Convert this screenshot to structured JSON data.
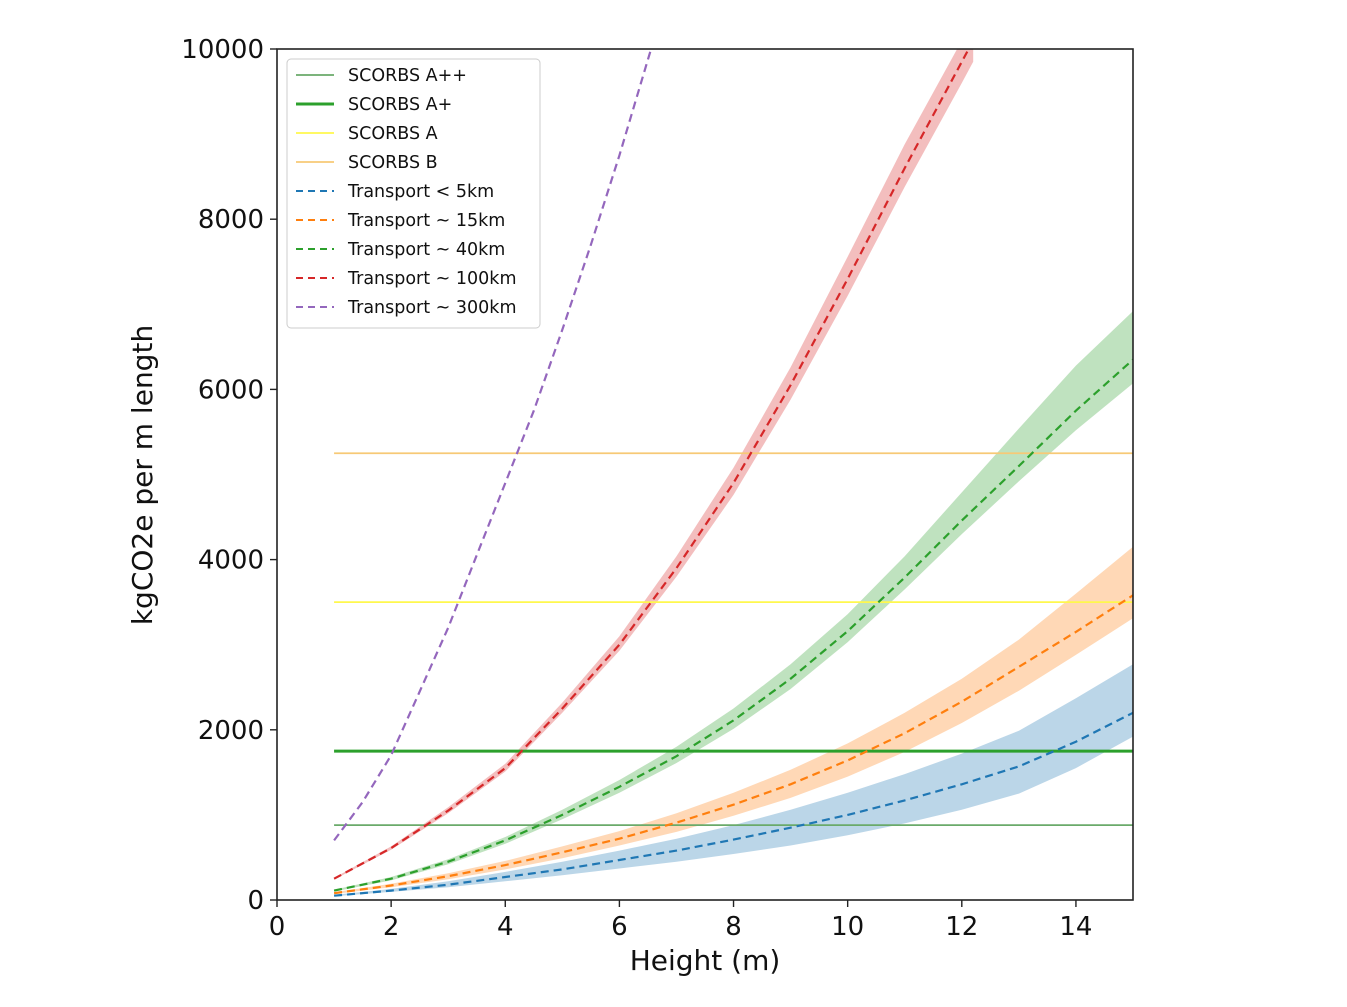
{
  "chart_data": {
    "type": "line",
    "title": "",
    "xlabel": "Height (m)",
    "ylabel": "kgCO2e per m length",
    "xlim": [
      0,
      15
    ],
    "ylim": [
      0,
      10000
    ],
    "xticks": [
      0,
      2,
      4,
      6,
      8,
      10,
      12,
      14
    ],
    "yticks": [
      0,
      2000,
      4000,
      6000,
      8000,
      10000
    ],
    "grid": false,
    "legend_position": "upper-left",
    "thresholds": [
      {
        "name": "SCORBS A++",
        "y": 880,
        "x_range": [
          1,
          15
        ],
        "color": "#6aaa6a",
        "weight": "thin"
      },
      {
        "name": "SCORBS A+",
        "y": 1750,
        "x_range": [
          1,
          15
        ],
        "color": "#2ca02c",
        "weight": "thick"
      },
      {
        "name": "SCORBS A",
        "y": 3500,
        "x_range": [
          1,
          15
        ],
        "color": "#fff84d",
        "weight": "thin"
      },
      {
        "name": "SCORBS B",
        "y": 5250,
        "x_range": [
          1,
          15
        ],
        "color": "#f7c976",
        "weight": "thin"
      }
    ],
    "series": [
      {
        "name": "Transport < 5km",
        "color": "#1f77b4",
        "band_color": "#1f77b4",
        "x": [
          1,
          2,
          3,
          4,
          5,
          6,
          7,
          8,
          9,
          10,
          11,
          12,
          13,
          14,
          15
        ],
        "values": [
          50,
          110,
          180,
          270,
          360,
          470,
          580,
          710,
          850,
          1000,
          1170,
          1360,
          1570,
          1860,
          2200
        ],
        "lower": [
          45,
          95,
          150,
          220,
          290,
          370,
          450,
          540,
          640,
          760,
          900,
          1060,
          1250,
          1550,
          1920
        ],
        "upper": [
          60,
          130,
          220,
          330,
          450,
          580,
          720,
          880,
          1060,
          1260,
          1480,
          1720,
          1990,
          2370,
          2770
        ]
      },
      {
        "name": "Transport ~ 15km",
        "color": "#ff7f0e",
        "band_color": "#ff7f0e",
        "x": [
          1,
          2,
          3,
          4,
          5,
          6,
          7,
          8,
          9,
          10,
          11,
          12,
          13,
          14,
          15
        ],
        "values": [
          80,
          170,
          280,
          410,
          560,
          720,
          910,
          1120,
          1360,
          1640,
          1960,
          2330,
          2740,
          3150,
          3580
        ],
        "lower": [
          70,
          150,
          245,
          360,
          490,
          640,
          800,
          990,
          1200,
          1450,
          1740,
          2080,
          2460,
          2880,
          3310
        ],
        "upper": [
          90,
          190,
          315,
          460,
          630,
          810,
          1020,
          1260,
          1530,
          1840,
          2200,
          2600,
          3060,
          3600,
          4150
        ]
      },
      {
        "name": "Transport ~ 40km",
        "color": "#2ca02c",
        "band_color": "#2ca02c",
        "x": [
          1,
          2,
          3,
          4,
          5,
          6,
          7,
          8,
          9,
          10,
          11,
          12,
          13,
          14,
          15
        ],
        "values": [
          110,
          250,
          450,
          700,
          1000,
          1330,
          1690,
          2110,
          2600,
          3160,
          3790,
          4460,
          5100,
          5750,
          6350
        ],
        "lower": [
          100,
          230,
          420,
          660,
          950,
          1260,
          1610,
          2010,
          2480,
          3030,
          3650,
          4300,
          4920,
          5520,
          6070
        ],
        "upper": [
          120,
          270,
          480,
          740,
          1060,
          1410,
          1800,
          2250,
          2770,
          3360,
          4040,
          4790,
          5540,
          6280,
          6920
        ]
      },
      {
        "name": "Transport ~ 100km",
        "color": "#d62728",
        "band_color": "#d62728",
        "x": [
          1,
          2,
          3,
          4,
          5,
          6,
          7,
          8,
          9,
          10,
          11,
          12,
          12.2
        ],
        "values": [
          250,
          610,
          1050,
          1550,
          2250,
          3000,
          3900,
          4900,
          6050,
          7300,
          8600,
          9850,
          10100
        ],
        "lower": [
          240,
          590,
          1020,
          1510,
          2200,
          2930,
          3800,
          4760,
          5880,
          7100,
          8380,
          9600,
          9850
        ],
        "upper": [
          260,
          630,
          1090,
          1600,
          2320,
          3100,
          4040,
          5080,
          6260,
          7560,
          8880,
          10100,
          10300
        ]
      },
      {
        "name": "Transport ~ 300km",
        "color": "#9467bd",
        "band_color": null,
        "x": [
          1,
          1.5,
          2,
          2.5,
          3,
          3.5,
          4,
          4.5,
          5,
          5.5,
          6,
          6.6
        ],
        "values": [
          700,
          1150,
          1700,
          2450,
          3200,
          4050,
          4900,
          5750,
          6700,
          7700,
          8750,
          10100
        ],
        "lower": null,
        "upper": null
      }
    ]
  }
}
